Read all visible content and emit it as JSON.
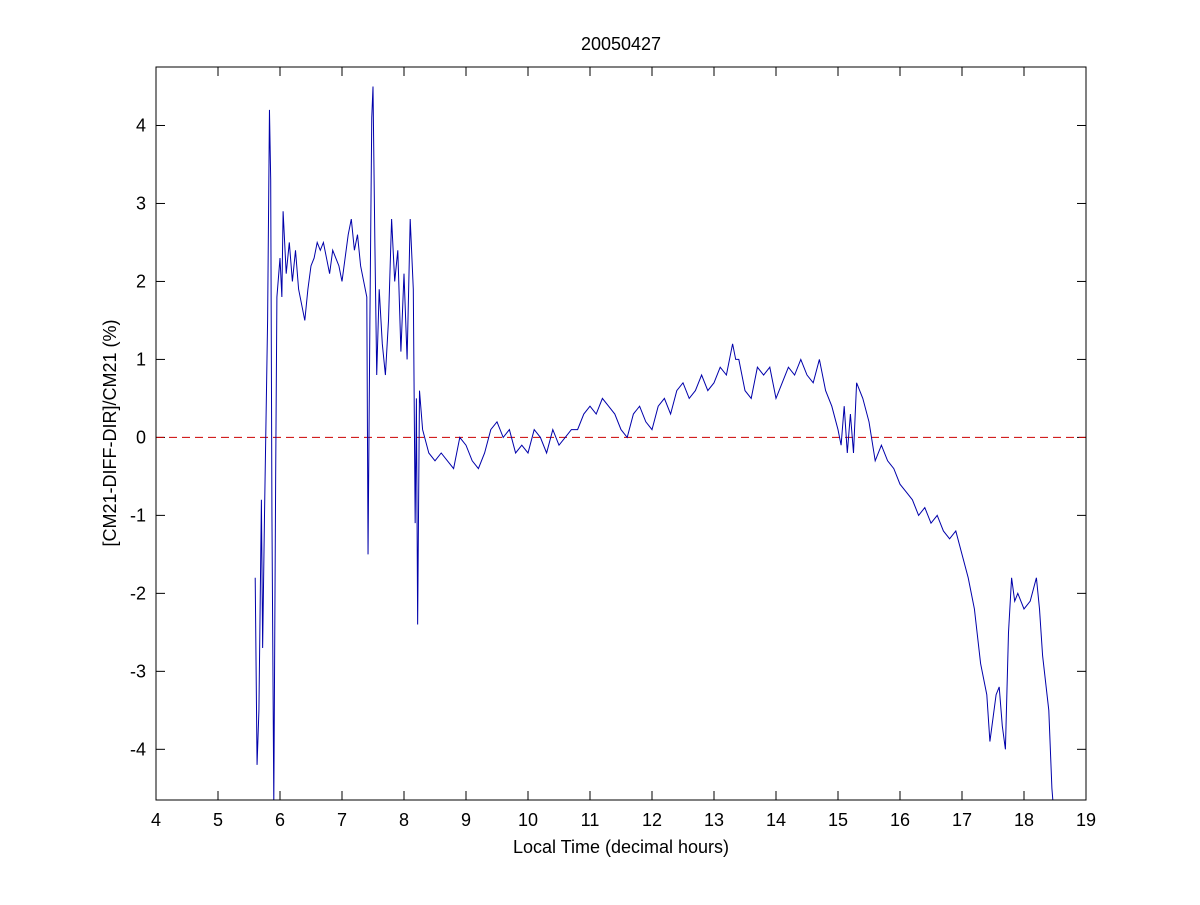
{
  "chart_data": {
    "type": "line",
    "title": "20050427",
    "x_label": "Local Time (decimal hours)",
    "y_label": "[CM21-DIFF-DIR]/CM21 (%)",
    "xlim": [
      4,
      19
    ],
    "xticks": [
      4,
      5,
      6,
      7,
      8,
      9,
      10,
      11,
      12,
      13,
      14,
      15,
      16,
      17,
      18,
      19
    ],
    "ylim": [
      -4.65,
      4.75
    ],
    "yticks": [
      -4,
      -3,
      -2,
      -1,
      0,
      1,
      2,
      3,
      4
    ],
    "grid": false,
    "reference_lines": [
      {
        "value": 0,
        "color": "#cc0000",
        "style": "dashed"
      }
    ],
    "series": [
      {
        "color": "#0000aa",
        "x": [
          5.6,
          5.63,
          5.66,
          5.7,
          5.72,
          5.75,
          5.78,
          5.8,
          5.83,
          5.85,
          5.87,
          5.9,
          5.93,
          5.95,
          6.0,
          6.03,
          6.05,
          6.1,
          6.15,
          6.2,
          6.25,
          6.3,
          6.35,
          6.4,
          6.45,
          6.5,
          6.55,
          6.6,
          6.65,
          6.7,
          6.75,
          6.8,
          6.85,
          6.9,
          6.95,
          7.0,
          7.05,
          7.1,
          7.15,
          7.2,
          7.25,
          7.3,
          7.35,
          7.4,
          7.42,
          7.45,
          7.48,
          7.5,
          7.53,
          7.56,
          7.6,
          7.65,
          7.7,
          7.75,
          7.8,
          7.85,
          7.9,
          7.95,
          8.0,
          8.05,
          8.1,
          8.15,
          8.18,
          8.2,
          8.22,
          8.25,
          8.3,
          8.4,
          8.5,
          8.6,
          8.7,
          8.8,
          8.9,
          9.0,
          9.1,
          9.2,
          9.3,
          9.4,
          9.5,
          9.6,
          9.7,
          9.8,
          9.9,
          10.0,
          10.1,
          10.2,
          10.3,
          10.4,
          10.5,
          10.6,
          10.7,
          10.8,
          10.9,
          11.0,
          11.1,
          11.2,
          11.3,
          11.4,
          11.5,
          11.6,
          11.7,
          11.8,
          11.9,
          12.0,
          12.1,
          12.2,
          12.3,
          12.4,
          12.5,
          12.6,
          12.7,
          12.8,
          12.9,
          13.0,
          13.1,
          13.2,
          13.3,
          13.35,
          13.4,
          13.5,
          13.6,
          13.7,
          13.8,
          13.9,
          14.0,
          14.1,
          14.2,
          14.3,
          14.4,
          14.5,
          14.6,
          14.7,
          14.8,
          14.9,
          15.0,
          15.05,
          15.1,
          15.15,
          15.2,
          15.25,
          15.3,
          15.4,
          15.5,
          15.6,
          15.7,
          15.8,
          15.9,
          16.0,
          16.1,
          16.2,
          16.3,
          16.4,
          16.5,
          16.6,
          16.7,
          16.8,
          16.9,
          17.0,
          17.1,
          17.2,
          17.3,
          17.4,
          17.45,
          17.5,
          17.55,
          17.6,
          17.65,
          17.7,
          17.75,
          17.8,
          17.85,
          17.9,
          18.0,
          18.1,
          18.2,
          18.25,
          18.3,
          18.4,
          18.45,
          18.47
        ],
        "values": [
          -1.8,
          -4.2,
          -3.5,
          -0.8,
          -2.7,
          -1,
          0.5,
          1.5,
          4.2,
          3.3,
          -1,
          -4.7,
          -0.5,
          1.8,
          2.3,
          1.8,
          2.9,
          2.1,
          2.5,
          2.0,
          2.4,
          1.9,
          1.7,
          1.5,
          1.9,
          2.2,
          2.3,
          2.5,
          2.4,
          2.5,
          2.3,
          2.1,
          2.4,
          2.3,
          2.2,
          2.0,
          2.3,
          2.6,
          2.8,
          2.4,
          2.6,
          2.2,
          2.0,
          1.8,
          -1.5,
          1.5,
          4.1,
          4.5,
          2.5,
          0.8,
          1.9,
          1.2,
          0.8,
          1.5,
          2.8,
          2.0,
          2.4,
          1.1,
          2.1,
          1.0,
          2.8,
          1.9,
          -1.1,
          0.5,
          -2.4,
          0.6,
          0.1,
          -0.2,
          -0.3,
          -0.2,
          -0.3,
          -0.4,
          0.0,
          -0.1,
          -0.3,
          -0.4,
          -0.2,
          0.1,
          0.2,
          0.0,
          0.1,
          -0.2,
          -0.1,
          -0.2,
          0.1,
          0.0,
          -0.2,
          0.1,
          -0.1,
          0.0,
          0.1,
          0.1,
          0.3,
          0.4,
          0.3,
          0.5,
          0.4,
          0.3,
          0.1,
          0.0,
          0.3,
          0.4,
          0.2,
          0.1,
          0.4,
          0.5,
          0.3,
          0.6,
          0.7,
          0.5,
          0.6,
          0.8,
          0.6,
          0.7,
          0.9,
          0.8,
          1.2,
          1.0,
          1.0,
          0.6,
          0.5,
          0.9,
          0.8,
          0.9,
          0.5,
          0.7,
          0.9,
          0.8,
          1.0,
          0.8,
          0.7,
          1.0,
          0.6,
          0.4,
          0.1,
          -0.1,
          0.4,
          -0.2,
          0.3,
          -0.2,
          0.7,
          0.5,
          0.2,
          -0.3,
          -0.1,
          -0.3,
          -0.4,
          -0.6,
          -0.7,
          -0.8,
          -1.0,
          -0.9,
          -1.1,
          -1.0,
          -1.2,
          -1.3,
          -1.2,
          -1.5,
          -1.8,
          -2.2,
          -2.9,
          -3.3,
          -3.9,
          -3.6,
          -3.3,
          -3.2,
          -3.7,
          -4.0,
          -2.5,
          -1.8,
          -2.1,
          -2.0,
          -2.2,
          -2.1,
          -1.8,
          -2.2,
          -2.8,
          -3.5,
          -4.5,
          -4.7
        ]
      }
    ]
  }
}
